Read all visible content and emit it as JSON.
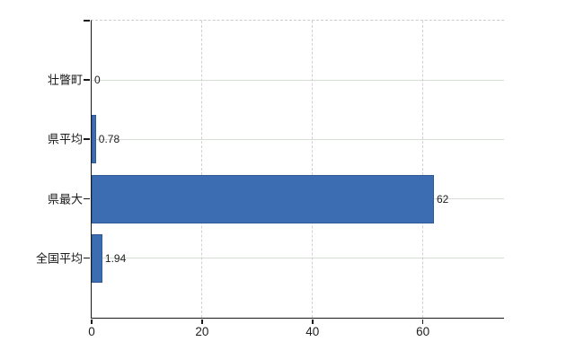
{
  "chart_data": {
    "type": "bar",
    "orientation": "horizontal",
    "title": "",
    "categories": [
      "壮瞥町",
      "県平均",
      "県最大",
      "全国平均"
    ],
    "values": [
      0,
      0.78,
      62,
      1.94
    ],
    "value_labels": [
      "0",
      "0.78",
      "62",
      "1.94"
    ],
    "x_ticks": [
      0,
      20,
      40,
      60
    ],
    "x_tick_labels": [
      "0",
      "20",
      "40",
      "60"
    ],
    "xlim": [
      0,
      74.7
    ],
    "grid": true,
    "legend": false,
    "bar_color": "#3c6db3",
    "bar_border_color": "#2f5a96",
    "axis_color": "#1a1a1a",
    "h_gridline_color": "#d6ddd4",
    "v_gridline_color": "#d6ced3",
    "text_color": "#1f1f1f"
  }
}
